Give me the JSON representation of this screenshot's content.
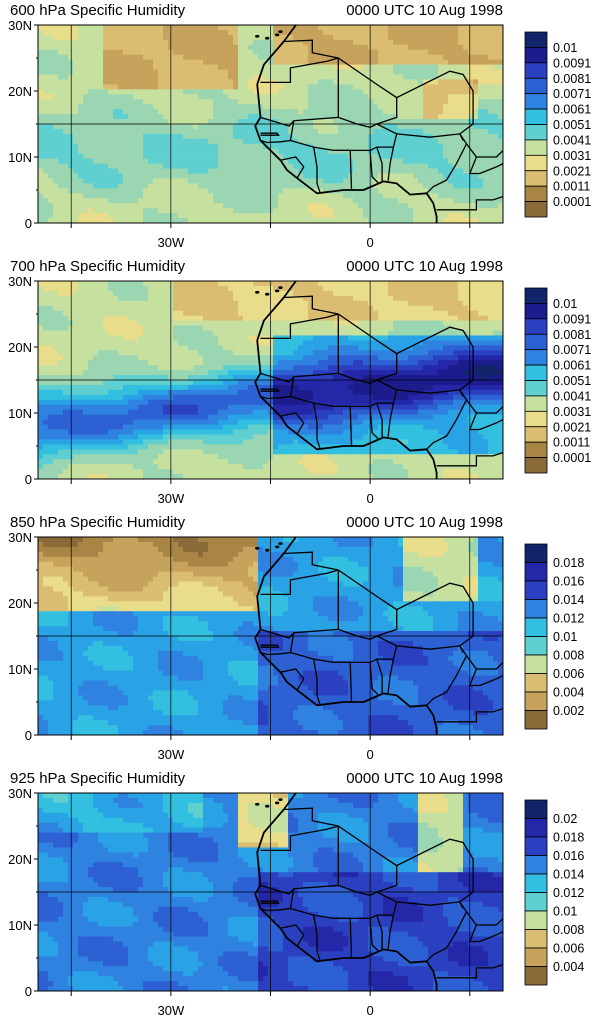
{
  "panels": [
    {
      "title": "600 hPa Specific Humidity",
      "time": "0000 UTC 10 Aug 1998",
      "lat_ticks": [
        "30N",
        "20N",
        "10N",
        "0"
      ],
      "lon_ticks": [
        "30W",
        "0"
      ],
      "colorbar_labels": [
        "0.01",
        "0.0091",
        "0.0081",
        "0.0071",
        "0.0061",
        "0.0051",
        "0.0041",
        "0.0031",
        "0.0021",
        "0.0011",
        "0.0001"
      ],
      "field": "moist_itcz_only"
    },
    {
      "title": "700 hPa Specific Humidity",
      "time": "0000 UTC 10 Aug 1998",
      "lat_ticks": [
        "30N",
        "20N",
        "10N",
        "0"
      ],
      "lon_ticks": [
        "30W",
        "0"
      ],
      "colorbar_labels": [
        "0.01",
        "0.0091",
        "0.0081",
        "0.0071",
        "0.0061",
        "0.0051",
        "0.0041",
        "0.0031",
        "0.0021",
        "0.0011",
        "0.0001"
      ],
      "field": "moist_band"
    },
    {
      "title": "850 hPa Specific Humidity",
      "time": "0000 UTC 10 Aug 1998",
      "lat_ticks": [
        "30N",
        "20N",
        "10N",
        "0"
      ],
      "lon_ticks": [
        "30W",
        "0"
      ],
      "colorbar_labels": [
        "0.018",
        "0.016",
        "0.014",
        "0.012",
        "0.01",
        "0.008",
        "0.006",
        "0.004",
        "0.002"
      ],
      "field": "low_level"
    },
    {
      "title": "925 hPa Specific Humidity",
      "time": "0000 UTC 10 Aug 1998",
      "lat_ticks": [
        "30N",
        "20N",
        "10N",
        "0"
      ],
      "lon_ticks": [
        "30W",
        "0"
      ],
      "colorbar_labels": [
        "0.02",
        "0.018",
        "0.016",
        "0.014",
        "0.012",
        "0.01",
        "0.008",
        "0.006",
        "0.004"
      ],
      "field": "surface"
    }
  ],
  "palette": [
    "#8a6a38",
    "#a88545",
    "#c7a25c",
    "#dbbd72",
    "#e9dc8a",
    "#c6e0a0",
    "#9ad6b2",
    "#5fcfd0",
    "#32bfe0",
    "#2aa2e6",
    "#2f82e0",
    "#2d60d2",
    "#2a40c0",
    "#2428a8",
    "#1c1c8c",
    "#12246a"
  ]
}
